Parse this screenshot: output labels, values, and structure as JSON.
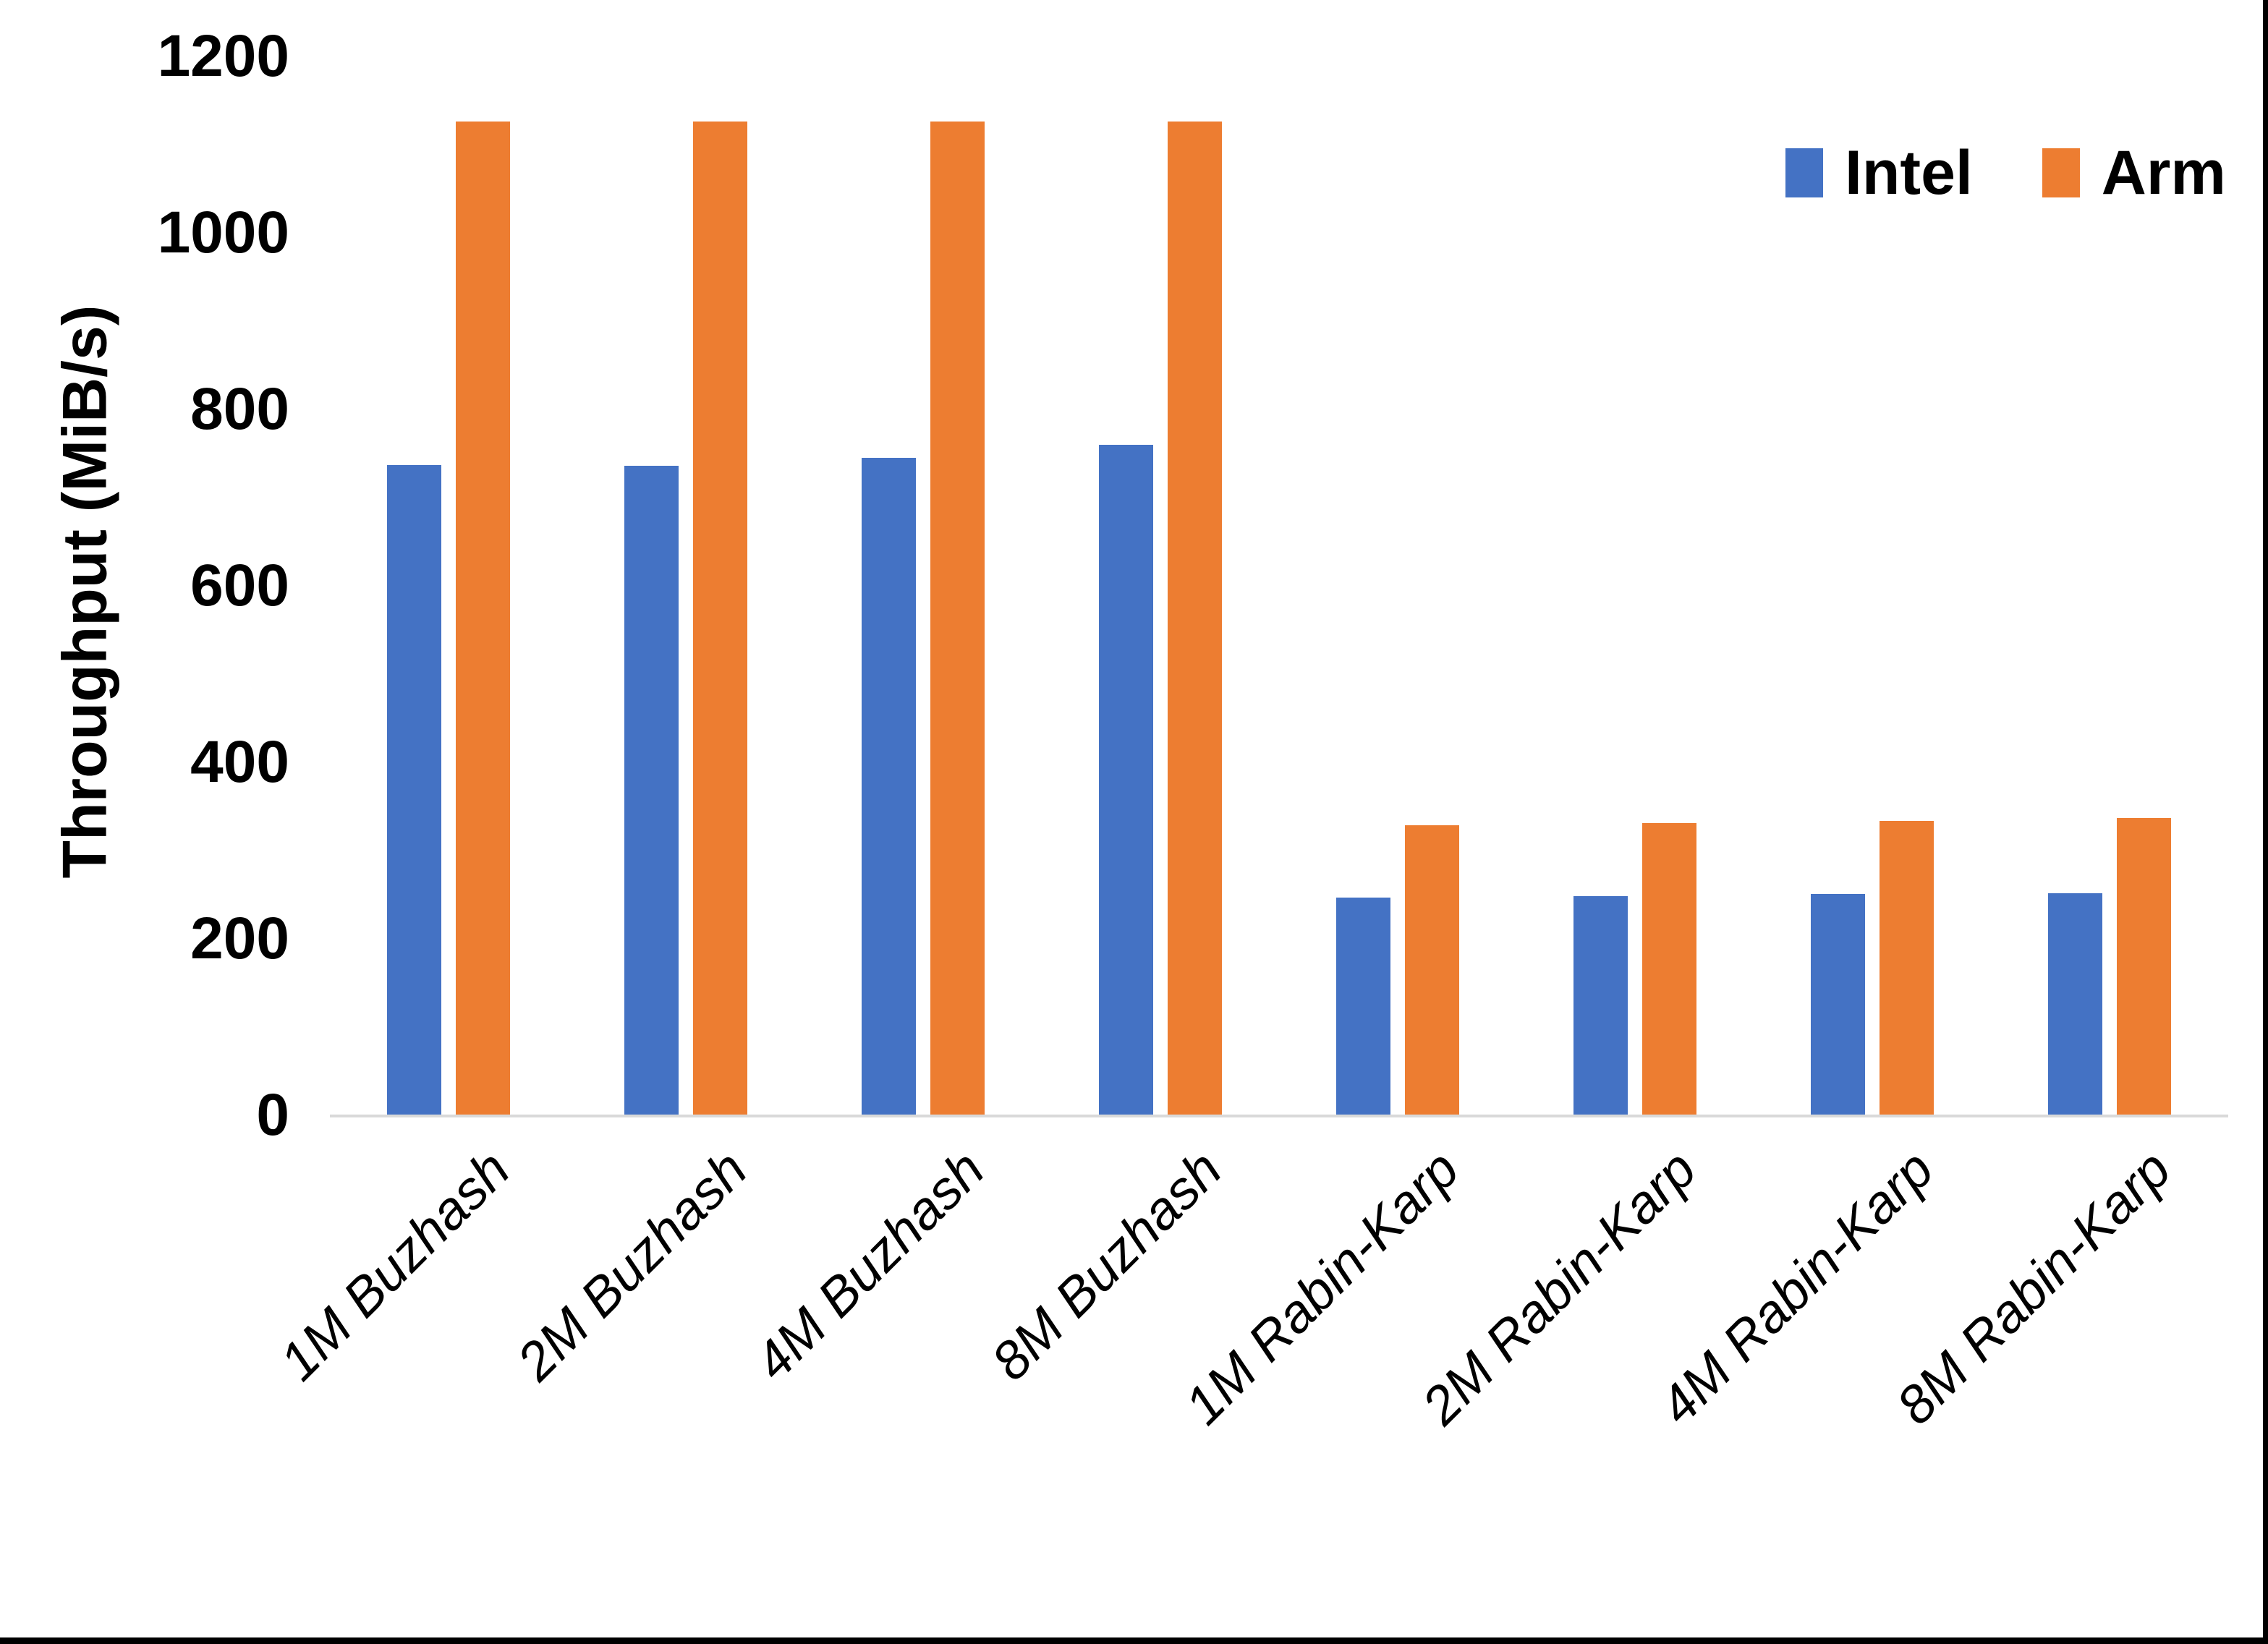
{
  "chart_data": {
    "type": "bar",
    "title": "",
    "xlabel": "",
    "ylabel": "Throughput (MiB/s)",
    "ylim": [
      0,
      1200
    ],
    "yticks": [
      0,
      200,
      400,
      600,
      800,
      1000,
      1200
    ],
    "grid": false,
    "legend_position": "top-right",
    "categories": [
      "1M Buzhash",
      "2M Buzhash",
      "4M Buzhash",
      "8M Buzhash",
      "1M Rabin-Karp",
      "2M Rabin-Karp",
      "4M Rabin-Karp",
      "8M Rabin-Karp"
    ],
    "series": [
      {
        "name": "Intel",
        "color": "#4472C4",
        "values": [
          737,
          736,
          745,
          760,
          247,
          248,
          251,
          252
        ]
      },
      {
        "name": "Arm",
        "color": "#ED7D31",
        "values": [
          1126,
          1126,
          1126,
          1126,
          329,
          331,
          334,
          337
        ]
      }
    ]
  },
  "colors": {
    "background": "#FFFFFF",
    "axis_line": "#D9D9D9",
    "text": "#000000",
    "frame_border": "#000000"
  }
}
